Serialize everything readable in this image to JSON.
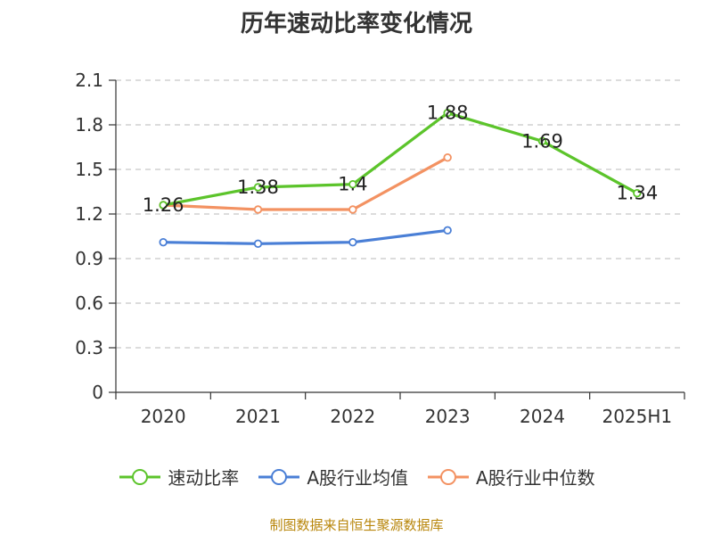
{
  "title": "历年速动比率变化情况",
  "footer": "制图数据来自恒生聚源数据库",
  "chart_data": {
    "type": "line",
    "title": "历年速动比率变化情况",
    "categories": [
      "2020",
      "2021",
      "2022",
      "2023",
      "2024",
      "2025H1"
    ],
    "ylim": [
      0,
      2.1
    ],
    "yticks": [
      "0",
      "0.3",
      "0.6",
      "0.9",
      "1.2",
      "1.5",
      "1.8",
      "2.1"
    ],
    "grid": true,
    "legend_position": "bottom",
    "series": [
      {
        "name": "速动比率",
        "color": "#5cc42b",
        "values": [
          1.26,
          1.38,
          1.4,
          1.88,
          1.69,
          1.34
        ],
        "labels": [
          "1.26",
          "1.38",
          "1.4",
          "1.88",
          "1.69",
          "1.34"
        ]
      },
      {
        "name": "A股行业均值",
        "color": "#4a7fd6",
        "values": [
          1.01,
          1.0,
          1.01,
          1.09,
          null,
          null
        ]
      },
      {
        "name": "A股行业中位数",
        "color": "#f39262",
        "values": [
          1.26,
          1.23,
          1.23,
          1.58,
          null,
          null
        ]
      }
    ]
  }
}
